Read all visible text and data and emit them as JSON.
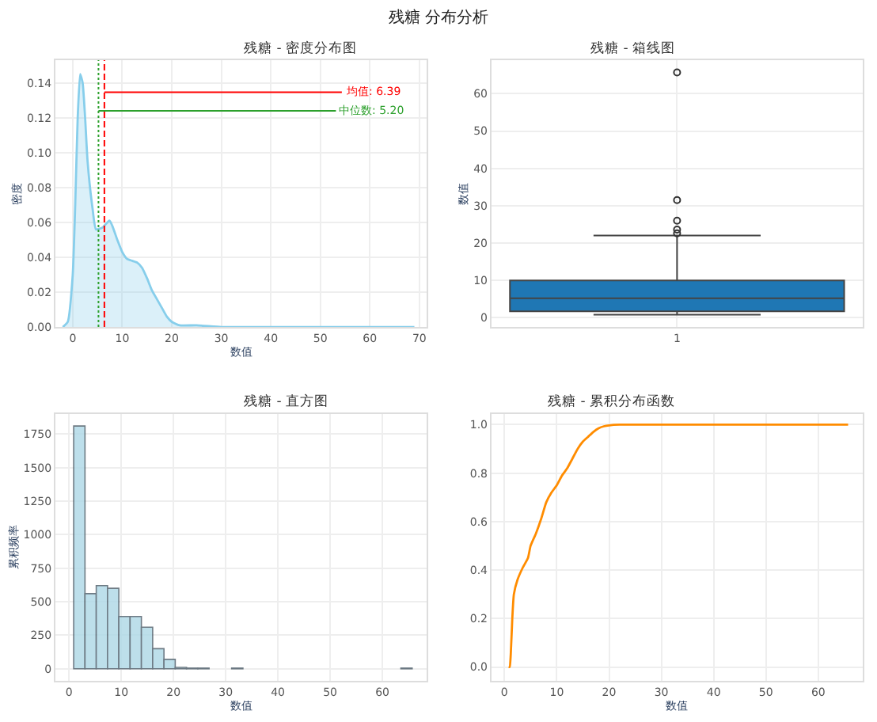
{
  "chart_data": [
    {
      "type": "other",
      "title": "残糖 分布分析"
    },
    {
      "type": "area",
      "title": "残糖 - 密度分布图",
      "xlabel": "数值",
      "ylabel": "密度",
      "x": [
        -2,
        -1,
        0,
        0.5,
        1,
        1.5,
        2,
        2.5,
        3,
        4,
        4.7,
        6,
        7.4,
        8,
        9,
        10,
        11,
        12,
        13,
        14,
        15,
        16,
        17,
        18,
        19,
        20,
        21.6,
        25,
        30,
        35,
        40,
        50,
        60,
        69
      ],
      "series": [
        {
          "color": "#87ceeb",
          "values": [
            0,
            0.003,
            0.03,
            0.07,
            0.12,
            0.145,
            0.14,
            0.12,
            0.095,
            0.068,
            0.056,
            0.057,
            0.061,
            0.058,
            0.05,
            0.043,
            0.039,
            0.038,
            0.037,
            0.034,
            0.028,
            0.021,
            0.016,
            0.011,
            0.006,
            0.003,
            0.001,
            0.001,
            0,
            0,
            0,
            0,
            0,
            0
          ]
        }
      ],
      "xlim": [
        -3.5,
        71.5
      ],
      "xticks": [
        0,
        10,
        20,
        30,
        40,
        50,
        60,
        70
      ],
      "ylim": [
        0,
        0.153
      ],
      "yticks": [
        {
          "value": 0,
          "label": "0.00"
        },
        0.02,
        0.04,
        0.06,
        0.08,
        {
          "value": 0.1,
          "label": "0.10"
        },
        0.12,
        0.14
      ],
      "ref_lines": [
        {
          "axis": "x",
          "value": 6.39,
          "label": "均值: 6.39",
          "color": "#ff0000",
          "line_style": "dashed"
        },
        {
          "axis": "x",
          "value": 5.2,
          "label": "中位数: 5.20",
          "color": "#2ca02c",
          "line_style": "dotted"
        }
      ],
      "grid": true,
      "legend": "top right"
    },
    {
      "type": "box",
      "title": "残糖 - 箱线图",
      "ylabel": "数值",
      "categories": [
        "1"
      ],
      "boxes": [
        {
          "low": 0.8,
          "q1": 1.7,
          "median": 5.2,
          "q3": 10.0,
          "high": 22.0,
          "outliers": [
            65.7,
            31.5,
            26,
            23.6,
            22.6
          ]
        }
      ],
      "color": "#1f77b4",
      "ylim": [
        -2.5,
        69
      ],
      "yticks": [
        0,
        10,
        20,
        30,
        40,
        50,
        60
      ],
      "grid": true
    },
    {
      "type": "histogram",
      "title": "残糖 - 直方图",
      "xlabel": "数值",
      "ylabel": "累积频率",
      "bins": [
        0.9,
        3.06,
        5.22,
        7.38,
        9.54,
        11.7,
        13.86,
        16.02,
        18.18,
        20.34,
        22.5,
        24.66,
        26.82,
        28.98,
        31.14,
        33.3,
        35.46,
        37.62,
        39.78,
        41.94,
        44.1,
        46.26,
        48.42,
        50.58,
        52.74,
        54.9,
        57.06,
        59.22,
        61.38,
        63.54,
        65.7
      ],
      "values": [
        1810,
        560,
        620,
        600,
        390,
        390,
        310,
        150,
        70,
        10,
        5,
        5,
        0,
        0,
        5,
        0,
        0,
        0,
        0,
        0,
        0,
        0,
        0,
        0,
        0,
        0,
        0,
        0,
        0,
        5
      ],
      "color": "#add8e6",
      "xlim": [
        -2.6,
        68.5
      ],
      "xticks": [
        0,
        10,
        20,
        30,
        40,
        50,
        60
      ],
      "ylim": [
        -90,
        1900
      ],
      "yticks": [
        0,
        250,
        500,
        750,
        1000,
        1250,
        1500,
        1750
      ],
      "grid": true
    },
    {
      "type": "line",
      "title": "残糖 - 累积分布函数",
      "xlabel": "数值",
      "x": [
        0.8,
        1.0,
        1.2,
        1.5,
        1.8,
        2.5,
        3.5,
        4.5,
        5,
        6,
        7,
        8,
        9,
        10,
        11,
        12,
        13,
        14,
        15,
        16,
        17,
        18,
        19,
        20,
        22,
        65.7
      ],
      "series": [
        {
          "color": "#ff8c00",
          "values": [
            0,
            0.0,
            0.05,
            0.2,
            0.3,
            0.36,
            0.41,
            0.45,
            0.5,
            0.55,
            0.61,
            0.68,
            0.72,
            0.75,
            0.79,
            0.82,
            0.86,
            0.9,
            0.93,
            0.95,
            0.97,
            0.985,
            0.993,
            0.997,
            1.0,
            1.0
          ]
        }
      ],
      "xlim": [
        -2.5,
        68.5
      ],
      "xticks": [
        0,
        10,
        20,
        30,
        40,
        50,
        60
      ],
      "ylim": [
        -0.057,
        1.044
      ],
      "yticks": [
        {
          "value": 0,
          "label": "0.0"
        },
        0.2,
        0.4,
        0.6,
        0.8,
        {
          "value": 1,
          "label": "1.0"
        }
      ],
      "grid": true
    }
  ]
}
